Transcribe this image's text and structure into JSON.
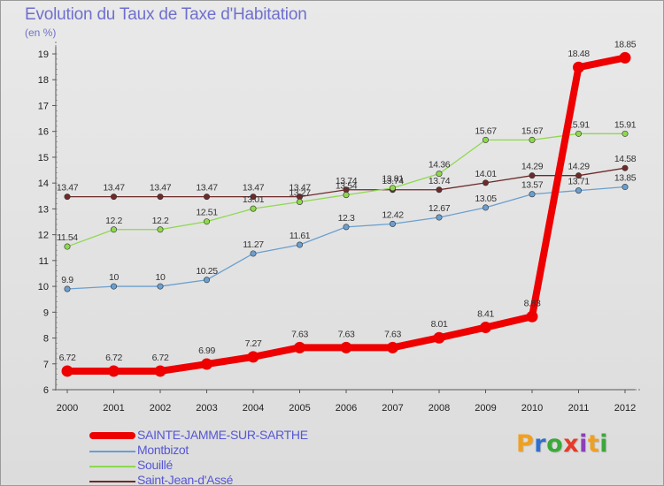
{
  "title": "Evolution du Taux de Taxe d'Habitation",
  "unit_note": "(en %)",
  "logo": {
    "text": "Proxiti",
    "letters": [
      {
        "ch": "P",
        "color": "#f0a020"
      },
      {
        "ch": "r",
        "color": "#2f6fd0"
      },
      {
        "ch": "o",
        "color": "#3aa83a"
      },
      {
        "ch": "x",
        "color": "#e63a2a"
      },
      {
        "ch": "i",
        "color": "#8b3fb8"
      },
      {
        "ch": "t",
        "color": "#f0a020"
      },
      {
        "ch": "i",
        "color": "#3aa83a"
      }
    ]
  },
  "chart_data": {
    "type": "line",
    "title": "Evolution du Taux de Taxe d'Habitation",
    "ylabel": "(en %)",
    "xlabel": "",
    "x": [
      "2000",
      "2001",
      "2002",
      "2003",
      "2004",
      "2005",
      "2006",
      "2007",
      "2008",
      "2009",
      "2010",
      "2011",
      "2012"
    ],
    "ylim": [
      6,
      19
    ],
    "yticks": [
      6,
      7,
      8,
      9,
      10,
      11,
      12,
      13,
      14,
      15,
      16,
      17,
      18,
      19
    ],
    "grid": false,
    "legend_position": "bottom-left",
    "series": [
      {
        "name": "Saint-Jean-d'Assé",
        "color": "#6e2a2a",
        "width": 1.3,
        "values": [
          13.47,
          13.47,
          13.47,
          13.47,
          13.47,
          13.47,
          13.74,
          13.74,
          13.74,
          14.01,
          14.29,
          14.29,
          14.58
        ],
        "labels": [
          "13.47",
          "13.47",
          "13.47",
          "13.47",
          "13.47",
          "13.47",
          "13.74",
          "13.74",
          "13.74",
          "14.01",
          "14.29",
          "14.29",
          "14.58"
        ]
      },
      {
        "name": "Souillé",
        "color": "#8ed84e",
        "width": 1.3,
        "values": [
          11.54,
          12.2,
          12.2,
          12.51,
          13.01,
          13.27,
          13.54,
          13.81,
          14.36,
          15.67,
          15.67,
          15.91,
          15.91
        ],
        "labels": [
          "11.54",
          "12.2",
          "12.2",
          "12.51",
          "13.01",
          "13.27",
          "13.54",
          "13.81",
          "14.36",
          "15.67",
          "15.67",
          "15.91",
          "15.91"
        ]
      },
      {
        "name": "Montbizot",
        "color": "#6a9fcf",
        "width": 1.3,
        "values": [
          9.9,
          10,
          10,
          10.25,
          11.27,
          11.61,
          12.3,
          12.42,
          12.67,
          13.05,
          13.57,
          13.71,
          13.85
        ],
        "labels": [
          "9.9",
          "10",
          "10",
          "10.25",
          "11.27",
          "11.61",
          "12.3",
          "12.42",
          "12.67",
          "13.05",
          "13.57",
          "13.71",
          "13.85"
        ]
      },
      {
        "name": "SAINTE-JAMME-SUR-SARTHE",
        "color": "#ee0000",
        "width": 8,
        "values": [
          6.72,
          6.72,
          6.72,
          6.99,
          7.27,
          7.63,
          7.63,
          7.63,
          8.01,
          8.41,
          8.83,
          18.48,
          18.85
        ],
        "labels": [
          "6.72",
          "6.72",
          "6.72",
          "6.99",
          "7.27",
          "7.63",
          "7.63",
          "7.63",
          "8.01",
          "8.41",
          "8.83",
          "18.48",
          "18.85"
        ]
      }
    ]
  },
  "legend": [
    {
      "name": "SAINTE-JAMME-SUR-SARTHE",
      "color": "#ee0000",
      "thick": true
    },
    {
      "name": "Montbizot",
      "color": "#6a9fcf",
      "thick": false
    },
    {
      "name": "Souillé",
      "color": "#8ed84e",
      "thick": false
    },
    {
      "name": "Saint-Jean-d'Assé",
      "color": "#6e2a2a",
      "thick": false
    }
  ]
}
